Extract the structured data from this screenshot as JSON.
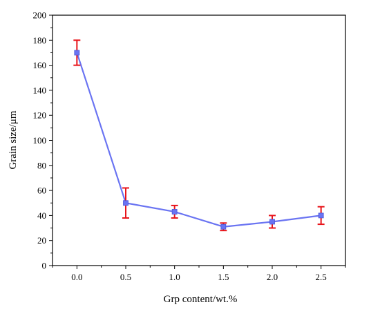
{
  "chart_data": {
    "type": "line",
    "title": "",
    "xlabel": "Grp content/wt.%",
    "ylabel": "Grain size/μm",
    "xlim": [
      -0.25,
      2.75
    ],
    "ylim": [
      0,
      200
    ],
    "x_ticks": [
      0.0,
      0.5,
      1.0,
      1.5,
      2.0,
      2.5
    ],
    "x_tick_labels": [
      "0.0",
      "0.5",
      "1.0",
      "1.5",
      "2.0",
      "2.5"
    ],
    "y_ticks": [
      0,
      20,
      40,
      60,
      80,
      100,
      120,
      140,
      160,
      180,
      200
    ],
    "y_tick_labels": [
      "0",
      "20",
      "40",
      "60",
      "80",
      "100",
      "120",
      "140",
      "160",
      "180",
      "200"
    ],
    "grid": false,
    "legend": "none",
    "series": [
      {
        "x": [
          0.0,
          0.5,
          1.0,
          1.5,
          2.0,
          2.5
        ],
        "y": [
          170,
          50,
          43,
          31,
          35,
          40
        ],
        "error_low": [
          160,
          38,
          38,
          28,
          30,
          33
        ],
        "error_high": [
          180,
          62,
          48,
          34,
          40,
          47
        ],
        "line_color": "#6a74f2",
        "marker_color": "#6a74f2",
        "errorbar_color": "#e8141a"
      }
    ]
  }
}
